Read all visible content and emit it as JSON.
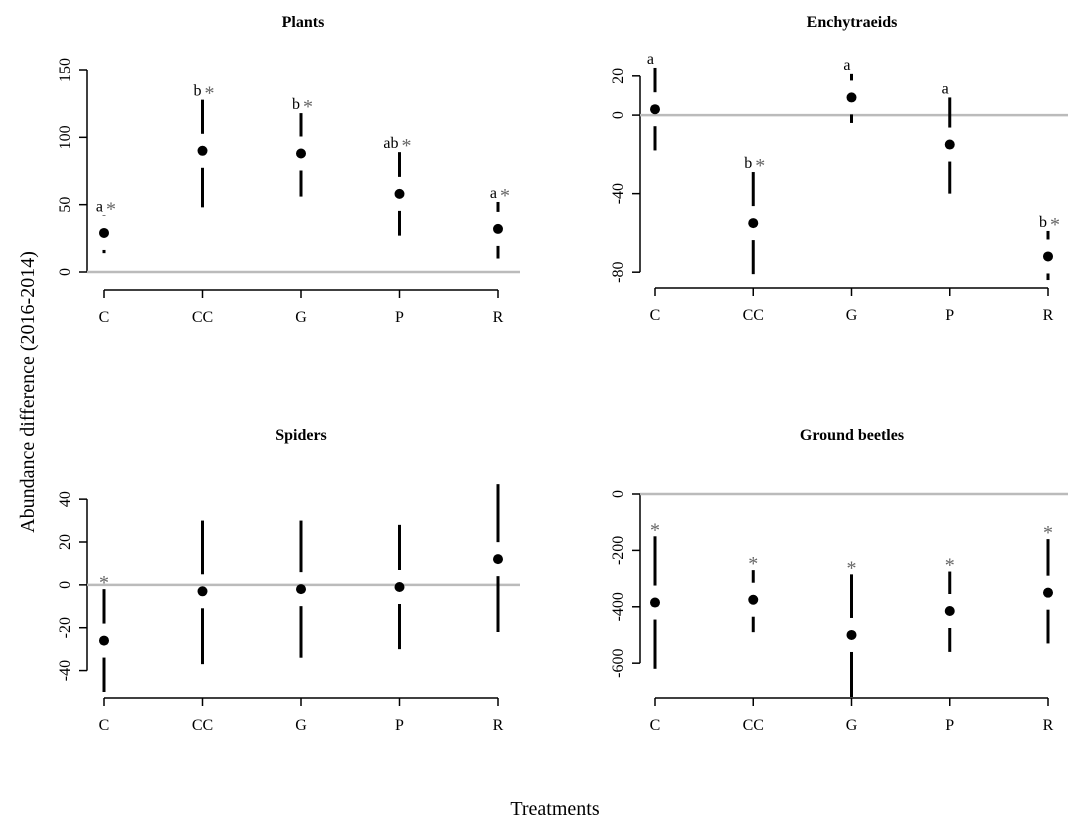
{
  "ylabel": "Abundance difference (2016-2014)",
  "xlabel": "Treatments",
  "colors": {
    "points": "#000000",
    "zero_line": "#bbbbbb",
    "star": "#666666"
  },
  "chart_data": [
    {
      "type": "scatter",
      "title": "Plants",
      "categories": [
        "C",
        "CC",
        "G",
        "P",
        "R"
      ],
      "ylim": [
        0,
        150
      ],
      "yticks": [
        0,
        50,
        100,
        150
      ],
      "values": [
        29,
        90,
        88,
        58,
        32
      ],
      "ci_low": [
        14,
        48,
        56,
        27,
        10
      ],
      "ci_high": [
        42,
        128,
        118,
        89,
        52
      ],
      "letters": [
        "a",
        "b",
        "b",
        "ab",
        "a"
      ],
      "stars": [
        "*",
        "*",
        "*",
        "*",
        "*"
      ],
      "zero_line": true
    },
    {
      "type": "scatter",
      "title": "Enchytraeids",
      "categories": [
        "C",
        "CC",
        "G",
        "P",
        "R"
      ],
      "ylim": [
        -85,
        25
      ],
      "yticks": [
        -80,
        -40,
        0,
        20
      ],
      "values": [
        3,
        -55,
        9,
        -15,
        -72
      ],
      "ci_low": [
        -18,
        -81,
        -4,
        -40,
        -84
      ],
      "ci_high": [
        24,
        -29,
        21,
        9,
        -59
      ],
      "letters": [
        "a",
        "b",
        "a",
        "a",
        "b"
      ],
      "stars": [
        "",
        "*",
        "",
        "",
        "*"
      ],
      "zero_line": true
    },
    {
      "type": "scatter",
      "title": "Spiders",
      "categories": [
        "C",
        "CC",
        "G",
        "P",
        "R"
      ],
      "ylim": [
        -50,
        48
      ],
      "yticks": [
        -40,
        -20,
        0,
        20,
        40
      ],
      "values": [
        -26,
        -3,
        -2,
        -1,
        12
      ],
      "ci_low": [
        -50,
        -37,
        -34,
        -30,
        -22
      ],
      "ci_high": [
        -2,
        30,
        30,
        28,
        47
      ],
      "letters": [
        "",
        "",
        "",
        "",
        ""
      ],
      "stars": [
        "*",
        "",
        "",
        "",
        ""
      ],
      "zero_line": true
    },
    {
      "type": "scatter",
      "title": "Ground beetles",
      "categories": [
        "C",
        "CC",
        "G",
        "P",
        "R"
      ],
      "ylim": [
        -720,
        0
      ],
      "yticks": [
        -600,
        -400,
        -200,
        0
      ],
      "values": [
        -385,
        -375,
        -500,
        -415,
        -350
      ],
      "ci_low": [
        -620,
        -490,
        -720,
        -560,
        -530
      ],
      "ci_high": [
        -150,
        -270,
        -285,
        -275,
        -160
      ],
      "letters": [
        "",
        "",
        "",
        "",
        ""
      ],
      "stars": [
        "*",
        "*",
        "*",
        "*",
        "*"
      ],
      "zero_line": true
    }
  ]
}
